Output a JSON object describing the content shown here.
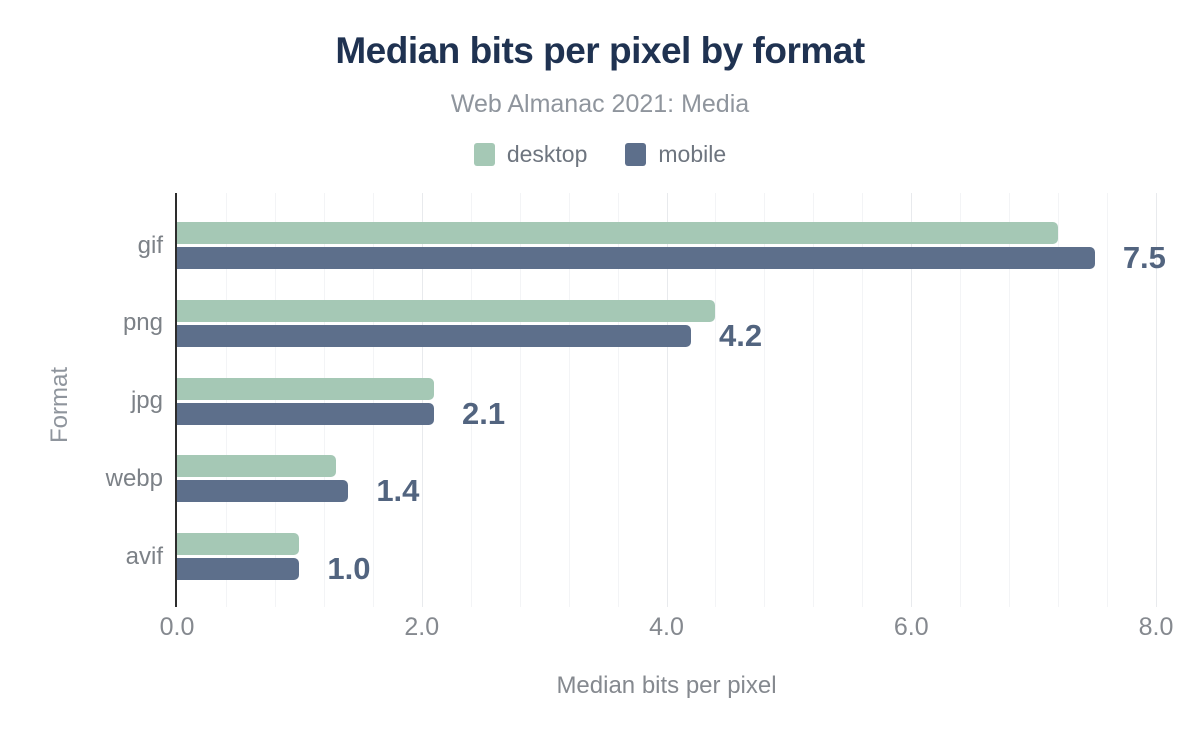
{
  "chart": {
    "title": "Median bits per pixel by format",
    "subtitle": "Web Almanac 2021: Media",
    "xlabel": "Median bits per pixel",
    "ylabel": "Format"
  },
  "chart_data": {
    "type": "bar",
    "orientation": "horizontal",
    "title": "Median bits per pixel by format",
    "subtitle": "Web Almanac 2021: Media",
    "xlabel": "Median bits per pixel",
    "ylabel": "Format",
    "categories": [
      "gif",
      "png",
      "jpg",
      "webp",
      "avif"
    ],
    "series": [
      {
        "name": "desktop",
        "color": "#a5c8b5",
        "values": [
          7.2,
          4.4,
          2.1,
          1.3,
          1.0
        ]
      },
      {
        "name": "mobile",
        "color": "#5d6f8b",
        "values": [
          7.5,
          4.2,
          2.1,
          1.4,
          1.0
        ]
      }
    ],
    "bar_labels": {
      "series": "mobile",
      "values": [
        "7.5",
        "4.2",
        "2.1",
        "1.4",
        "1.0"
      ]
    },
    "xlim": [
      0,
      8
    ],
    "xticks": [
      0,
      2,
      4,
      6,
      8
    ],
    "xtick_labels": [
      "0.0",
      "2.0",
      "4.0",
      "6.0",
      "8.0"
    ],
    "minor_grid_step": 0.4,
    "grid": "vertical-minor-and-major",
    "legend_position": "top"
  },
  "colors": {
    "title": "#1f3251",
    "subtitle": "#8f959d",
    "legend_text": "#6e757f",
    "bar_value_label": "#52647f",
    "axis_line": "#2d2d2d",
    "desktop": "#a5c8b5",
    "mobile": "#5d6f8b"
  }
}
